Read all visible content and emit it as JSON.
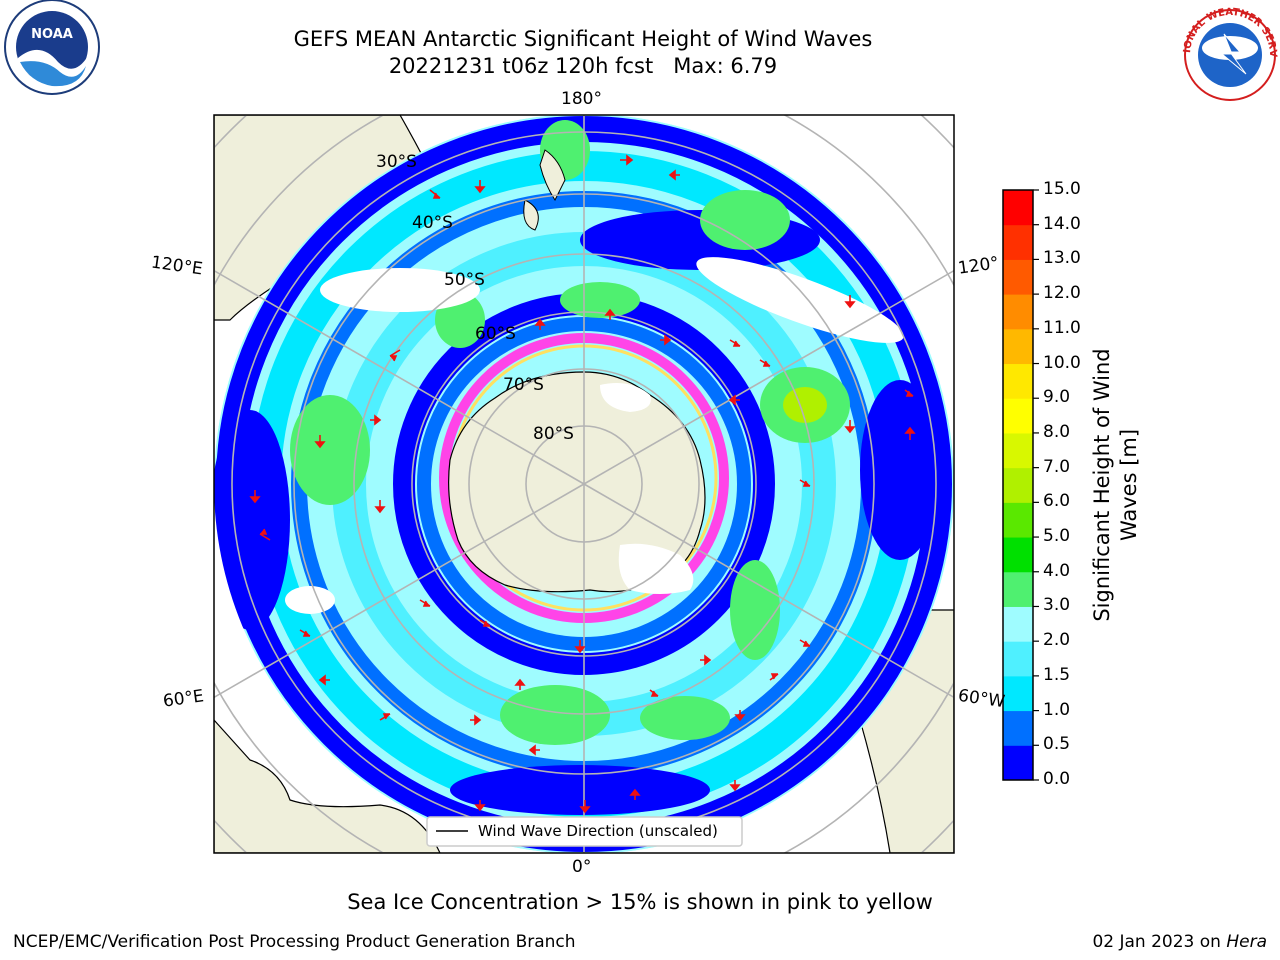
{
  "title_line1": "GEFS MEAN Antarctic Significant Height of Wind Waves",
  "title_line2": "20221231 t06z 120h fcst   Max: 6.79",
  "longitude_labels": {
    "top": "180°",
    "bottom": "0°",
    "left_upper": "120°E",
    "left_lower": "60°E",
    "right_upper": "120°",
    "right_lower": "60°W"
  },
  "latitude_labels": [
    "30°S",
    "40°S",
    "50°S",
    "60°S",
    "70°S",
    "80°S"
  ],
  "legend_label": "Wind Wave Direction (unscaled)",
  "colorbar": {
    "label_line1": "Significant Height of Wind",
    "label_line2": "Waves [m]",
    "ticks": [
      "0.0",
      "0.5",
      "1.0",
      "1.5",
      "2.0",
      "3.0",
      "4.0",
      "5.0",
      "6.0",
      "7.0",
      "8.0",
      "9.0",
      "10.0",
      "11.0",
      "12.0",
      "13.0",
      "14.0",
      "15.0"
    ],
    "colors": [
      "#0000ff",
      "#0070ff",
      "#00e8ff",
      "#4ff0ff",
      "#9ffcff",
      "#4ff070",
      "#00e000",
      "#5ae800",
      "#b0f000",
      "#d8f800",
      "#ffff00",
      "#ffe800",
      "#ffb800",
      "#ff8c00",
      "#ff5a00",
      "#ff3000",
      "#ff0000"
    ]
  },
  "caption": "Sea Ice Concentration > 15% is shown in pink to yellow",
  "footer_left": "NCEP/EMC/Verification Post Processing Product Generation Branch",
  "footer_date": "02 Jan 2023 on ",
  "footer_host": "Hera",
  "logos": {
    "noaa": "NOAA",
    "nws": "NATIONAL WEATHER SERVICE"
  }
}
